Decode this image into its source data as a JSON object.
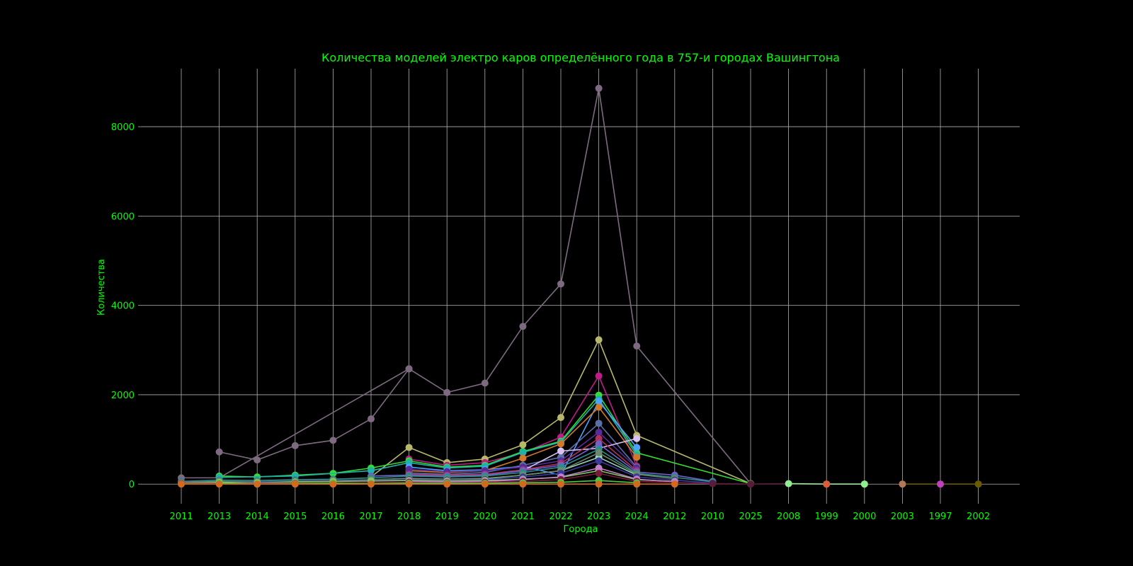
{
  "chart_data": {
    "type": "line",
    "title": "Количества моделей электро каров определённого года в 757-и городах Вашингтона",
    "xlabel": "Города",
    "ylabel": "Количества",
    "categories": [
      "2011",
      "2013",
      "2014",
      "2015",
      "2016",
      "2017",
      "2018",
      "2019",
      "2020",
      "2021",
      "2022",
      "2023",
      "2024",
      "2012",
      "2010",
      "2025",
      "2008",
      "1999",
      "2000",
      "2003",
      "1997",
      "2002"
    ],
    "yticks": [
      0,
      2000,
      4000,
      6000,
      8000
    ],
    "ylim": [
      -440,
      9300
    ],
    "grid": true,
    "text_color": "#00ff00",
    "background": "#000000",
    "series": [
      {
        "color": "#7d6a80",
        "points": [
          [
            0,
            140
          ],
          [
            1,
            140
          ],
          [
            6,
            2580
          ],
          [
            7,
            2050
          ],
          [
            8,
            2260
          ],
          [
            9,
            3530
          ],
          [
            10,
            4480
          ],
          [
            11,
            8860
          ],
          [
            12,
            3090
          ],
          [
            15,
            10
          ]
        ]
      },
      {
        "color": "#7d6a80",
        "points": [
          [
            1,
            720
          ],
          [
            2,
            540
          ],
          [
            3,
            860
          ],
          [
            4,
            980
          ],
          [
            5,
            1460
          ],
          [
            6,
            2580
          ]
        ]
      },
      {
        "color": "#b8b86a",
        "points": [
          [
            5,
            160
          ],
          [
            6,
            820
          ],
          [
            7,
            480
          ],
          [
            8,
            560
          ],
          [
            9,
            880
          ],
          [
            10,
            1490
          ],
          [
            11,
            3230
          ],
          [
            12,
            1090
          ],
          [
            15,
            10
          ]
        ]
      },
      {
        "color": "#c21a8a",
        "points": [
          [
            6,
            560
          ],
          [
            7,
            420
          ],
          [
            8,
            480
          ],
          [
            9,
            700
          ],
          [
            10,
            1050
          ],
          [
            11,
            2420
          ],
          [
            12,
            400
          ]
        ]
      },
      {
        "color": "#33dd33",
        "points": [
          [
            1,
            180
          ],
          [
            2,
            160
          ],
          [
            3,
            200
          ],
          [
            4,
            240
          ],
          [
            5,
            360
          ],
          [
            6,
            520
          ],
          [
            7,
            380
          ],
          [
            8,
            420
          ],
          [
            9,
            730
          ],
          [
            10,
            960
          ],
          [
            11,
            1990
          ],
          [
            12,
            700
          ],
          [
            15,
            10
          ]
        ]
      },
      {
        "color": "#20b2aa",
        "points": [
          [
            1,
            150
          ],
          [
            3,
            180
          ],
          [
            5,
            300
          ],
          [
            6,
            480
          ],
          [
            7,
            360
          ],
          [
            8,
            400
          ],
          [
            9,
            710
          ],
          [
            10,
            940
          ],
          [
            11,
            1900
          ],
          [
            12,
            650
          ]
        ]
      },
      {
        "color": "#4aa3ff",
        "points": [
          [
            6,
            380
          ],
          [
            7,
            300
          ],
          [
            8,
            320
          ],
          [
            9,
            400
          ],
          [
            10,
            200
          ],
          [
            11,
            1850
          ],
          [
            12,
            820
          ]
        ]
      },
      {
        "color": "#d2782a",
        "points": [
          [
            6,
            300
          ],
          [
            7,
            260
          ],
          [
            8,
            300
          ],
          [
            9,
            580
          ],
          [
            10,
            900
          ],
          [
            11,
            1720
          ],
          [
            12,
            600
          ]
        ]
      },
      {
        "color": "#5a6fa8",
        "points": [
          [
            6,
            250
          ],
          [
            7,
            220
          ],
          [
            8,
            260
          ],
          [
            9,
            420
          ],
          [
            10,
            600
          ],
          [
            11,
            1360
          ],
          [
            12,
            380
          ]
        ]
      },
      {
        "color": "#5a2a9a",
        "points": [
          [
            6,
            330
          ],
          [
            7,
            280
          ],
          [
            8,
            300
          ],
          [
            9,
            380
          ],
          [
            10,
            520
          ],
          [
            11,
            1160
          ],
          [
            12,
            360
          ]
        ]
      },
      {
        "color": "#d8c0f0",
        "points": [
          [
            9,
            300
          ],
          [
            10,
            740
          ],
          [
            11,
            800
          ],
          [
            12,
            1020
          ]
        ]
      },
      {
        "color": "#b03060",
        "points": [
          [
            6,
            220
          ],
          [
            7,
            200
          ],
          [
            8,
            220
          ],
          [
            9,
            320
          ],
          [
            10,
            460
          ],
          [
            11,
            1020
          ],
          [
            12,
            300
          ]
        ]
      },
      {
        "color": "#7060c8",
        "points": [
          [
            5,
            180
          ],
          [
            6,
            200
          ],
          [
            7,
            180
          ],
          [
            8,
            200
          ],
          [
            9,
            300
          ],
          [
            10,
            420
          ],
          [
            11,
            900
          ],
          [
            12,
            270
          ],
          [
            13,
            200
          ],
          [
            14,
            60
          ]
        ]
      },
      {
        "color": "#2e8b8b",
        "points": [
          [
            0,
            60
          ],
          [
            1,
            90
          ],
          [
            2,
            80
          ],
          [
            3,
            100
          ],
          [
            4,
            110
          ],
          [
            5,
            140
          ],
          [
            6,
            180
          ],
          [
            7,
            160
          ],
          [
            8,
            180
          ],
          [
            9,
            260
          ],
          [
            10,
            380
          ],
          [
            11,
            780
          ],
          [
            12,
            240
          ],
          [
            13,
            150
          ],
          [
            14,
            50
          ]
        ]
      },
      {
        "color": "#9bd4c0",
        "points": [
          [
            6,
            120
          ],
          [
            7,
            110
          ],
          [
            8,
            120
          ],
          [
            9,
            200
          ],
          [
            10,
            300
          ],
          [
            11,
            600
          ],
          [
            12,
            200
          ]
        ]
      },
      {
        "color": "#6a8a6a",
        "points": [
          [
            0,
            40
          ],
          [
            1,
            60
          ],
          [
            2,
            55
          ],
          [
            3,
            70
          ],
          [
            4,
            80
          ],
          [
            5,
            100
          ],
          [
            6,
            130
          ],
          [
            7,
            110
          ],
          [
            8,
            130
          ],
          [
            9,
            200
          ],
          [
            10,
            300
          ],
          [
            11,
            700
          ],
          [
            12,
            220
          ],
          [
            13,
            120
          ]
        ]
      },
      {
        "color": "#3a3a9a",
        "points": [
          [
            0,
            30
          ],
          [
            3,
            60
          ],
          [
            6,
            100
          ],
          [
            7,
            90
          ],
          [
            8,
            100
          ],
          [
            9,
            160
          ],
          [
            10,
            240
          ],
          [
            11,
            520
          ],
          [
            12,
            160
          ],
          [
            13,
            90
          ],
          [
            14,
            20
          ]
        ]
      },
      {
        "color": "#8ac46a",
        "points": [
          [
            0,
            20
          ],
          [
            1,
            40
          ],
          [
            2,
            30
          ],
          [
            3,
            50
          ],
          [
            4,
            60
          ],
          [
            5,
            70
          ],
          [
            6,
            80
          ],
          [
            7,
            70
          ],
          [
            8,
            80
          ],
          [
            9,
            110
          ],
          [
            10,
            150
          ],
          [
            11,
            300
          ],
          [
            12,
            100
          ],
          [
            13,
            60
          ]
        ]
      },
      {
        "color": "#c080c8",
        "points": [
          [
            6,
            60
          ],
          [
            7,
            50
          ],
          [
            8,
            60
          ],
          [
            9,
            100
          ],
          [
            10,
            160
          ],
          [
            11,
            360
          ],
          [
            12,
            110
          ],
          [
            13,
            50
          ]
        ]
      },
      {
        "color": "#7a1a3a",
        "points": [
          [
            0,
            10
          ],
          [
            3,
            20
          ],
          [
            6,
            40
          ],
          [
            7,
            30
          ],
          [
            8,
            40
          ],
          [
            9,
            60
          ],
          [
            10,
            100
          ],
          [
            11,
            240
          ],
          [
            12,
            60
          ],
          [
            14,
            10
          ],
          [
            15,
            0
          ]
        ]
      },
      {
        "color": "#44cc44",
        "points": [
          [
            1,
            20
          ],
          [
            2,
            0
          ],
          [
            3,
            10
          ],
          [
            4,
            20
          ],
          [
            5,
            10
          ],
          [
            6,
            20
          ],
          [
            7,
            20
          ],
          [
            8,
            20
          ],
          [
            9,
            30
          ],
          [
            10,
            40
          ],
          [
            11,
            80
          ],
          [
            12,
            30
          ]
        ]
      },
      {
        "color": "#d2691e",
        "points": [
          [
            0,
            0
          ],
          [
            1,
            0
          ],
          [
            2,
            0
          ],
          [
            3,
            0
          ],
          [
            4,
            0
          ],
          [
            5,
            0
          ],
          [
            6,
            0
          ],
          [
            7,
            0
          ],
          [
            8,
            0
          ],
          [
            9,
            0
          ],
          [
            10,
            0
          ],
          [
            11,
            0
          ],
          [
            12,
            0
          ],
          [
            13,
            0
          ]
        ]
      },
      {
        "color": "#5a1a3a",
        "points": [
          [
            14,
            10
          ],
          [
            15,
            0
          ],
          [
            16,
            10
          ]
        ]
      },
      {
        "color": "#90ee90",
        "points": [
          [
            16,
            10
          ],
          [
            17,
            0
          ],
          [
            18,
            0
          ]
        ]
      },
      {
        "color": "#6a5a00",
        "points": [
          [
            19,
            0
          ],
          [
            20,
            0
          ],
          [
            21,
            0
          ]
        ]
      }
    ],
    "markers": [
      {
        "x": 17,
        "y": 0,
        "color": "#e05a3a"
      },
      {
        "x": 19,
        "y": 0,
        "color": "#b07a5a"
      },
      {
        "x": 20,
        "y": 0,
        "color": "#c040c0"
      },
      {
        "x": 21,
        "y": 0,
        "color": "#6a5a00"
      },
      {
        "x": 18,
        "y": 0,
        "color": "#90ee90"
      }
    ]
  }
}
